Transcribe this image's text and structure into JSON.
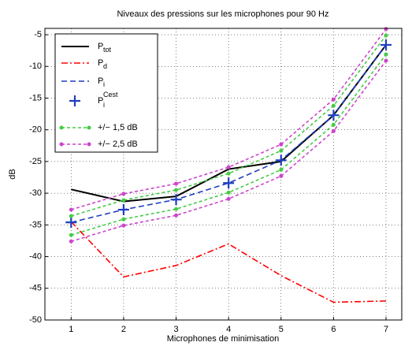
{
  "chart_data": {
    "type": "line",
    "title": "Niveaux des pressions sur les microphones pour 90 Hz",
    "xlabel": "Microphones de minimisation",
    "ylabel": "dB",
    "x": [
      1,
      2,
      3,
      4,
      5,
      6,
      7
    ],
    "xlim": [
      0.5,
      7.3
    ],
    "xticks": [
      1,
      2,
      3,
      4,
      5,
      6,
      7
    ],
    "ylim": [
      -50,
      -4
    ],
    "yticks": [
      -50,
      -45,
      -40,
      -35,
      -30,
      -25,
      -20,
      -15,
      -10,
      -5
    ],
    "grid": true,
    "legend": "upper left",
    "series": [
      {
        "name": "P",
        "sub": "tot",
        "color": "#000000",
        "style": "solid",
        "values": [
          -29.4,
          -31.3,
          -30.5,
          -26.2,
          -25.0,
          -17.7,
          -6.6
        ]
      },
      {
        "name": "P",
        "sub": "d",
        "color": "#ff0000",
        "style": "dashdot",
        "values": [
          -34.5,
          -43.2,
          -41.4,
          -38.0,
          -43.0,
          -47.2,
          -47.0
        ]
      },
      {
        "name": "P",
        "sub": "i",
        "color": "#1f3fbf",
        "style": "dashed",
        "values": [
          -34.6,
          -32.6,
          -31.0,
          -28.4,
          -24.8,
          -17.7,
          -6.6
        ]
      },
      {
        "name": "P",
        "sub": "i",
        "sup": "Cest",
        "color": "#1f3fbf",
        "style": "plus",
        "values": [
          -34.6,
          -32.6,
          -31.0,
          -28.4,
          -24.8,
          -17.7,
          -6.6
        ]
      },
      {
        "name": "+/− 1,5 dB",
        "color": "#44cc44",
        "style": "band",
        "values_high": [
          -33.6,
          -31.1,
          -29.5,
          -26.9,
          -23.3,
          -16.2,
          -5.1
        ],
        "values_low": [
          -36.6,
          -34.1,
          -32.5,
          -29.9,
          -26.3,
          -19.2,
          -8.1
        ]
      },
      {
        "name": "+/− 2,5 dB",
        "color": "#cc44cc",
        "style": "band",
        "values_high": [
          -32.6,
          -30.1,
          -28.5,
          -25.9,
          -22.3,
          -15.2,
          -4.1
        ],
        "values_low": [
          -37.6,
          -35.1,
          -33.5,
          -30.9,
          -27.3,
          -20.2,
          -9.1
        ]
      }
    ]
  }
}
